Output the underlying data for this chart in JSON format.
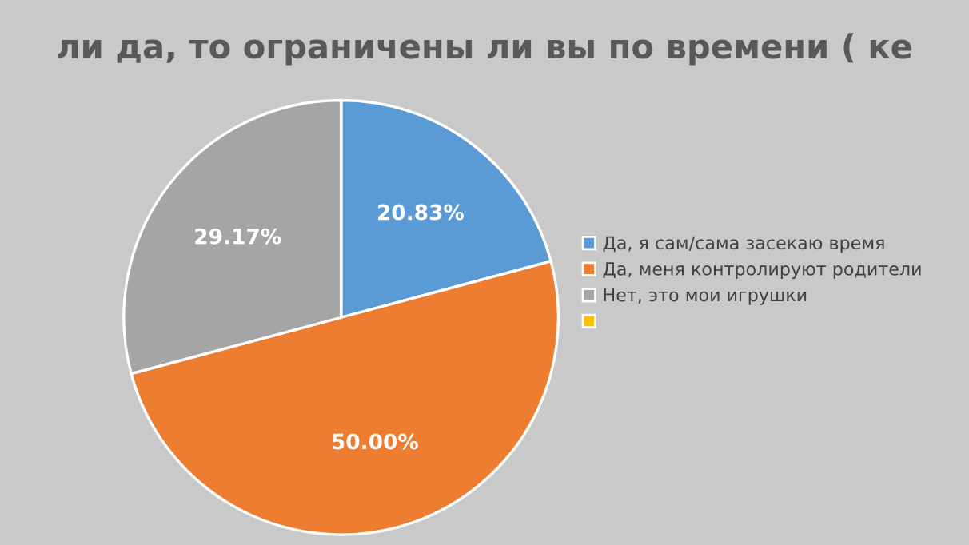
{
  "chart_data": {
    "type": "pie",
    "title": "ли да, то ограничены ли вы по времени ( ке",
    "categories": [
      "Да, я сам/сама засекаю время",
      "Да, меня контролируют родители",
      "Нет, это мои игрушки",
      null
    ],
    "values": [
      20.83,
      50.0,
      29.17,
      0
    ],
    "value_labels": [
      "20.83%",
      "50.00%",
      "29.17%",
      null
    ],
    "colors": [
      "#5b9bd5",
      "#ed7d31",
      "#a5a5a5",
      "#ffc000"
    ],
    "legend": "right"
  }
}
